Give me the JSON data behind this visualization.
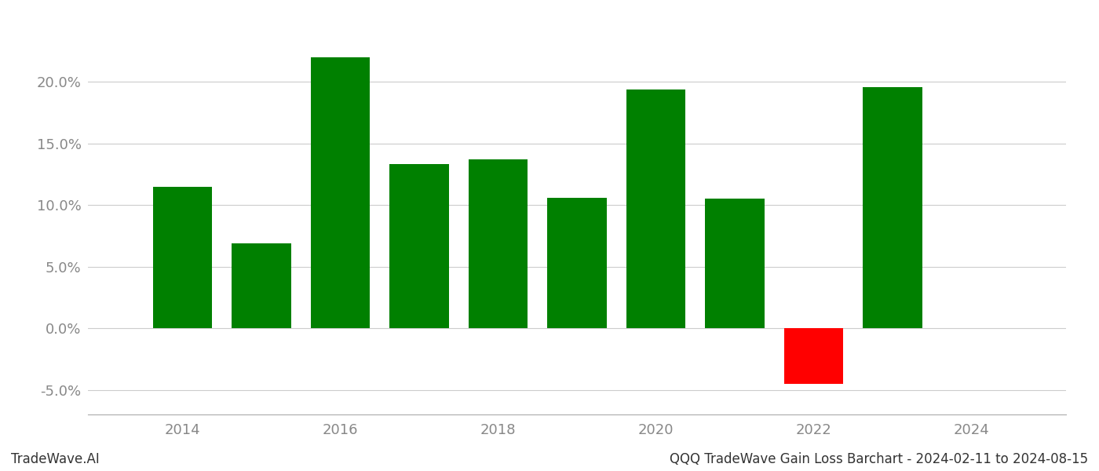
{
  "years": [
    2014,
    2015,
    2016,
    2017,
    2018,
    2019,
    2020,
    2021,
    2022,
    2023
  ],
  "values": [
    0.115,
    0.069,
    0.22,
    0.133,
    0.137,
    0.106,
    0.194,
    0.105,
    -0.045,
    0.196
  ],
  "colors": [
    "#008000",
    "#008000",
    "#008000",
    "#008000",
    "#008000",
    "#008000",
    "#008000",
    "#008000",
    "#ff0000",
    "#008000"
  ],
  "ylim": [
    -0.07,
    0.255
  ],
  "yticks": [
    -0.05,
    0.0,
    0.05,
    0.1,
    0.15,
    0.2
  ],
  "xticks": [
    2014,
    2016,
    2018,
    2020,
    2022,
    2024
  ],
  "xlim": [
    2012.8,
    2025.2
  ],
  "footer_left": "TradeWave.AI",
  "footer_right": "QQQ TradeWave Gain Loss Barchart - 2024-02-11 to 2024-08-15",
  "background_color": "#ffffff",
  "bar_width": 0.75,
  "grid_color": "#cccccc",
  "tick_fontsize": 13,
  "footer_fontsize": 12
}
